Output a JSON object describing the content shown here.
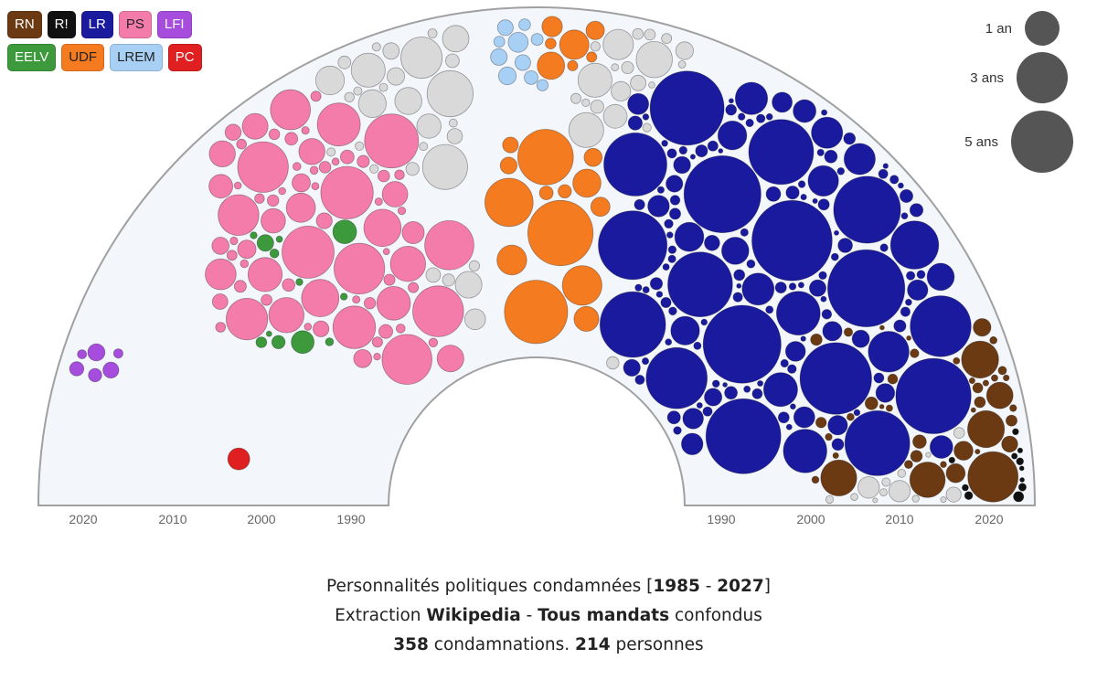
{
  "legend": [
    {
      "label": "RN",
      "color": "#6b3a12",
      "text": "#ffffff"
    },
    {
      "label": "R!",
      "color": "#111111",
      "text": "#ffffff"
    },
    {
      "label": "LR",
      "color": "#1a1a9e",
      "text": "#ffffff"
    },
    {
      "label": "PS",
      "color": "#f47cab",
      "text": "#222222"
    },
    {
      "label": "LFI",
      "color": "#a64ddd",
      "text": "#ffffff"
    },
    {
      "label": "EELV",
      "color": "#3c9a3c",
      "text": "#ffffff"
    },
    {
      "label": "UDF",
      "color": "#f57b20",
      "text": "#222222"
    },
    {
      "label": "LREM",
      "color": "#a8d0f5",
      "text": "#222222"
    },
    {
      "label": "PC",
      "color": "#e02020",
      "text": "#ffffff"
    }
  ],
  "size_legend": [
    {
      "label": "1 an",
      "years": 1
    },
    {
      "label": "3 ans",
      "years": 3
    },
    {
      "label": "5 ans",
      "years": 5
    }
  ],
  "axis_labels_left": [
    "2020",
    "2010",
    "2000",
    "1990"
  ],
  "axis_labels_right": [
    "1990",
    "2000",
    "2010",
    "2020"
  ],
  "caption": {
    "line1_a": "Personnalités politiques condamnées [",
    "line1_b": "1985",
    "line1_c": " - ",
    "line1_d": "2027",
    "line1_e": "]",
    "line2_a": "Extraction ",
    "line2_b": "Wikipedia",
    "line2_c": " - ",
    "line2_d": "Tous mandats",
    "line2_e": " confondus",
    "line3_a": "358",
    "line3_b": " condamnations. ",
    "line3_c": "214",
    "line3_d": " personnes"
  },
  "colors": {
    "grey": "#d9d9d9",
    "background": "#f3f6fb",
    "outline": "#999999"
  },
  "chart_data": {
    "type": "packed-bubble-hemicycle",
    "x_axis": "year of conviction (radial position)",
    "axis_range": [
      1985,
      2027
    ],
    "size_meaning": "sentence length in years",
    "groups": [
      {
        "party": "LFI",
        "count": 6,
        "side": "left",
        "years": [
          2018,
          2024
        ]
      },
      {
        "party": "PC",
        "count": 1,
        "side": "left",
        "years": [
          1998,
          1998
        ]
      },
      {
        "party": "EELV",
        "count": 12,
        "side": "left",
        "years": [
          1990,
          2002
        ]
      },
      {
        "party": "PS",
        "count": 55,
        "side": "left",
        "years": [
          1986,
          2005
        ]
      },
      {
        "party": "LREM",
        "count": 10,
        "side": "center",
        "years": [
          2017,
          2024
        ]
      },
      {
        "party": "UDF",
        "count": 25,
        "side": "center",
        "years": [
          1995,
          2010
        ]
      },
      {
        "party": "LR",
        "count": 150,
        "side": "right",
        "years": [
          1988,
          2024
        ]
      },
      {
        "party": "RN",
        "count": 60,
        "side": "right",
        "years": [
          1995,
          2025
        ]
      },
      {
        "party": "R!",
        "count": 10,
        "side": "right",
        "years": [
          2018,
          2025
        ]
      }
    ]
  }
}
